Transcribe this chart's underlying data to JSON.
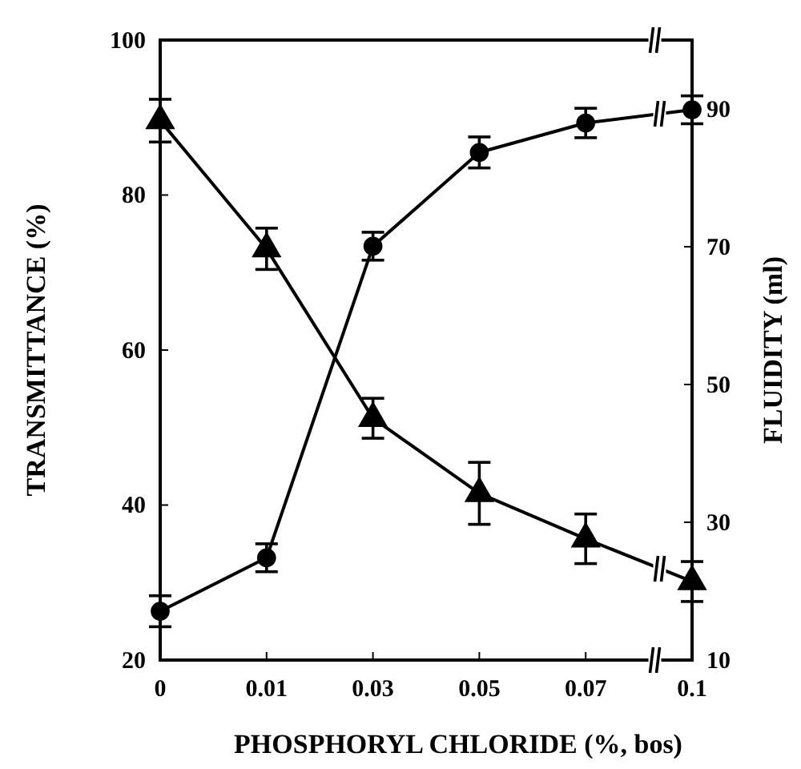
{
  "chart_data": {
    "type": "line",
    "xlabel": "PHOSPHORYL CHLORIDE (%, bos)",
    "ylabel": "TRANSMITTANCE (%)",
    "y2label": "FLUIDITY (ml)",
    "categories": [
      "0",
      "0.01",
      "0.03",
      "0.05",
      "0.07",
      "0.1"
    ],
    "ylim": [
      20,
      100
    ],
    "yticks": [
      20,
      40,
      60,
      80,
      100
    ],
    "y2lim": [
      10,
      100
    ],
    "y2ticks": [
      10,
      30,
      50,
      70,
      90
    ],
    "grid": false,
    "series": [
      {
        "color": "#000000",
        "marker": "circle",
        "values": [
          26.3,
          33.2,
          73.4,
          85.5,
          89.3,
          91
        ],
        "errors": [
          2,
          1.8,
          1.8,
          2,
          1.9,
          1.8
        ]
      },
      {
        "color": "#000000",
        "marker": "triangle",
        "axis": "y2",
        "values": [
          88.3,
          69.7,
          45.1,
          34.2,
          27.6,
          21.4
        ],
        "errors": [
          3.1,
          3,
          2.9,
          4.5,
          3.6,
          2.9
        ]
      }
    ]
  }
}
